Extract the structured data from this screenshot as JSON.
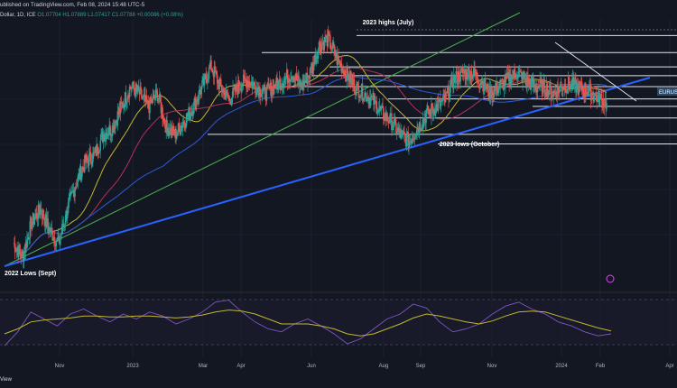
{
  "header": {
    "published": "ublished on TradingView.com, Feb 08, 2024 15:48 UTC-5",
    "symbol": "Dollar, 1D, ICE",
    "values": "O1.07704  H1.07889  L1.07417  C1.07788  +0.00086 (+0.08%)"
  },
  "footer": {
    "view_label": "View"
  },
  "colors": {
    "background": "#131722",
    "up_candle": "#26a69a",
    "down_candle": "#ef5350",
    "ma_fast": "#c2b62f",
    "ma_mid": "#b2315b",
    "ma_slow": "#2d5bd6",
    "uptrend_green": "#4caf50",
    "uptrend_blue": "#2962ff",
    "rsi_line": "#7e57c2",
    "rsi_signal": "#c2b62f",
    "price_tag": "#2a4a6b"
  },
  "chart_data": {
    "type": "candlestick",
    "title": "",
    "symbol_tag": "EURUSD",
    "x_tick_labels": [
      "Nov",
      "2023",
      "Mar",
      "Apr",
      "Jun",
      "Aug",
      "Sep",
      "Nov",
      "2024",
      "Feb",
      "Apr"
    ],
    "annotations": [
      "2023 highs (July)",
      "2022 Lows (Sept)",
      "2023 lows (October)"
    ],
    "price_path": [
      0.975,
      0.965,
      0.99,
      1.0,
      0.985,
      0.975,
      1.0,
      1.02,
      1.035,
      1.04,
      1.055,
      1.06,
      1.075,
      1.09,
      1.085,
      1.075,
      1.085,
      1.06,
      1.055,
      1.065,
      1.075,
      1.09,
      1.105,
      1.09,
      1.08,
      1.09,
      1.095,
      1.09,
      1.085,
      1.09,
      1.095,
      1.1,
      1.09,
      1.1,
      1.12,
      1.125,
      1.11,
      1.1,
      1.09,
      1.085,
      1.08,
      1.07,
      1.065,
      1.055,
      1.05,
      1.06,
      1.07,
      1.075,
      1.08,
      1.095,
      1.1,
      1.1,
      1.095,
      1.085,
      1.09,
      1.095,
      1.1,
      1.095,
      1.09,
      1.09,
      1.085,
      1.09,
      1.092,
      1.089,
      1.087,
      1.082,
      1.078
    ],
    "horizontal_levels": [
      1.1275,
      1.115,
      1.1045,
      1.098,
      1.09,
      1.081,
      1.0755,
      1.067,
      1.055,
      1.048
    ],
    "rsi_path": [
      28,
      42,
      62,
      55,
      48,
      60,
      65,
      58,
      52,
      60,
      55,
      62,
      58,
      50,
      55,
      62,
      72,
      74,
      62,
      52,
      45,
      42,
      50,
      55,
      48,
      40,
      30,
      35,
      45,
      55,
      60,
      70,
      66,
      52,
      42,
      45,
      50,
      60,
      68,
      72,
      65,
      60,
      52,
      48,
      42,
      38,
      40
    ],
    "rsi_signal_path": [
      40,
      45,
      52,
      54,
      55,
      56,
      58,
      58,
      57,
      57,
      58,
      58,
      57,
      56,
      57,
      59,
      62,
      64,
      63,
      60,
      55,
      50,
      50,
      50,
      48,
      45,
      40,
      38,
      40,
      45,
      50,
      56,
      60,
      58,
      55,
      52,
      50,
      53,
      58,
      62,
      63,
      62,
      58,
      54,
      50,
      46,
      43
    ]
  }
}
